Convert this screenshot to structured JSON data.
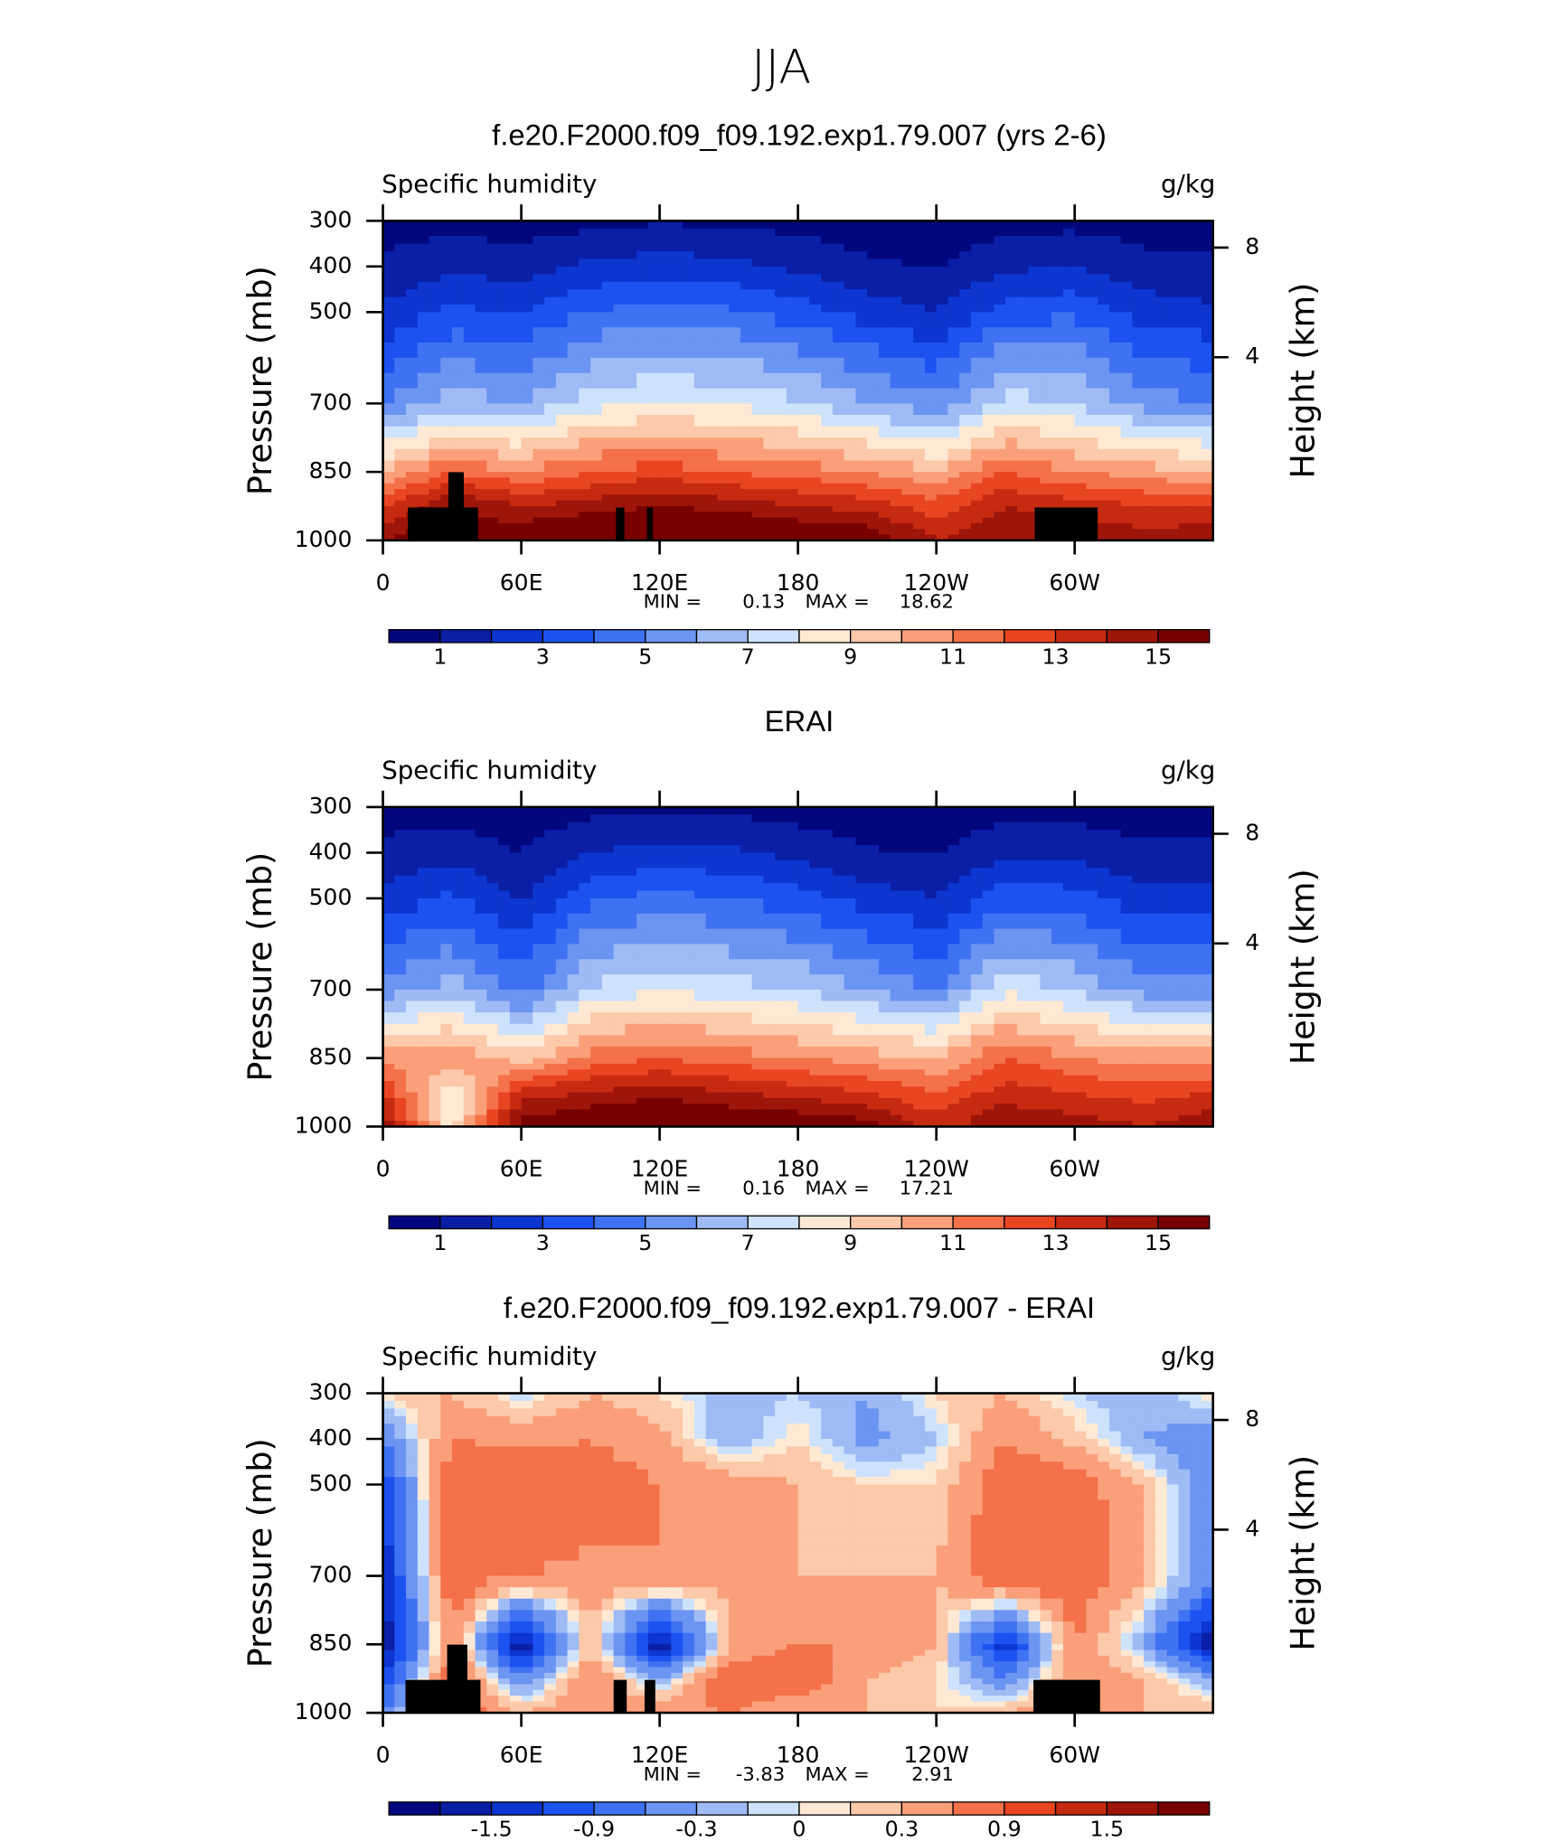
{
  "title": "JJA",
  "chart_data": [
    {
      "type": "contour",
      "title": "f.e20.F2000.f09_f09.192.exp1.79.007 (yrs 2-6)",
      "left_label": "Specific humidity",
      "right_label": "g/kg",
      "ylabel": "Pressure (mb)",
      "y2label": "Height (km)",
      "x": [
        0,
        30,
        60,
        90,
        120,
        150,
        180,
        210,
        240,
        270,
        300,
        330,
        360
      ],
      "y": [
        300,
        400,
        500,
        700,
        850,
        925,
        1000
      ],
      "z": [
        [
          0.5,
          0.6,
          0.5,
          0.7,
          0.9,
          0.8,
          0.6,
          0.4,
          0.3,
          0.6,
          0.7,
          0.5,
          0.5
        ],
        [
          1.2,
          1.8,
          1.5,
          2.2,
          2.5,
          2.3,
          1.8,
          1.2,
          0.9,
          1.8,
          2.0,
          1.3,
          1.2
        ],
        [
          2.2,
          3.2,
          3.0,
          4.0,
          4.5,
          4.2,
          3.5,
          2.6,
          2.0,
          3.5,
          3.8,
          2.6,
          2.2
        ],
        [
          5,
          6.5,
          6,
          7.5,
          8,
          7.8,
          7.2,
          6.2,
          5.2,
          7.5,
          7,
          5.5,
          5
        ],
        [
          10,
          12,
          11,
          12,
          12.5,
          12,
          11.5,
          11,
          10,
          12,
          11,
          10.5,
          10
        ],
        [
          13,
          15,
          14,
          14.5,
          15,
          14.5,
          14,
          13.5,
          12.5,
          14,
          13.5,
          13,
          13
        ],
        [
          15,
          16,
          16,
          17,
          17.5,
          17,
          16.5,
          16,
          14,
          15,
          15,
          14.5,
          15
        ]
      ],
      "xlim": [
        0,
        360
      ],
      "xticks": [
        0,
        {
          "value": 60,
          "label": "60E"
        },
        {
          "value": 120,
          "label": "120E"
        },
        180,
        {
          "value": 240,
          "label": "120W"
        },
        {
          "value": 300,
          "label": "60W"
        }
      ],
      "ylim": [
        1000,
        300
      ],
      "yticks": [
        300,
        400,
        500,
        700,
        850,
        1000
      ],
      "y2ticks": [
        4,
        8
      ],
      "min_label": "MIN =",
      "min": 0.13,
      "max_label": "MAX =",
      "max": 18.62,
      "levels": [
        1,
        2,
        3,
        4,
        5,
        6,
        7,
        8,
        9,
        10,
        11,
        12,
        13,
        14,
        15
      ],
      "colorbar_ticks": [
        1,
        3,
        5,
        7,
        9,
        11,
        13,
        15
      ],
      "colors": [
        "#03077e",
        "#0a1ea6",
        "#0c36cf",
        "#1c52ef",
        "#3f72f2",
        "#6c94f2",
        "#9fbbf6",
        "#cfe2fb",
        "#ffe9d4",
        "#fcc9aa",
        "#fb9f7b",
        "#f47149",
        "#e84521",
        "#c62a10",
        "#9e150a",
        "#780000"
      ]
    },
    {
      "type": "contour",
      "title": "ERAI",
      "left_label": "Specific humidity",
      "right_label": "g/kg",
      "ylabel": "Pressure (mb)",
      "y2label": "Height (km)",
      "x": [
        0,
        30,
        60,
        90,
        120,
        150,
        180,
        210,
        240,
        270,
        300,
        330,
        360
      ],
      "y": [
        300,
        400,
        500,
        700,
        850,
        925,
        1000
      ],
      "z": [
        [
          0.5,
          0.5,
          0.4,
          0.7,
          0.8,
          0.7,
          0.5,
          0.4,
          0.3,
          0.6,
          0.6,
          0.4,
          0.5
        ],
        [
          1.3,
          1.6,
          1.0,
          2.0,
          2.3,
          2.2,
          1.7,
          1.1,
          0.9,
          1.8,
          1.7,
          1.2,
          1.3
        ],
        [
          2.4,
          3.2,
          1.9,
          3.8,
          4.3,
          4.0,
          3.4,
          2.5,
          2.0,
          3.6,
          3.4,
          2.4,
          2.4
        ],
        [
          5.5,
          6.5,
          4.5,
          7.2,
          7.8,
          7.5,
          7.0,
          6.0,
          5.0,
          7.8,
          6.8,
          5.5,
          5.5
        ],
        [
          10.5,
          11,
          9.5,
          11.5,
          12,
          11.5,
          11,
          10.5,
          10,
          12,
          11,
          10.5,
          10.5
        ],
        [
          13,
          8,
          13.5,
          14,
          14.5,
          14,
          13.5,
          13,
          12,
          13.5,
          13,
          12.5,
          13
        ],
        [
          15,
          8.5,
          15.5,
          16.5,
          17,
          16.5,
          16,
          15.5,
          13.5,
          15,
          14.5,
          14,
          15
        ]
      ],
      "xlim": [
        0,
        360
      ],
      "xticks": [
        0,
        {
          "value": 60,
          "label": "60E"
        },
        {
          "value": 120,
          "label": "120E"
        },
        180,
        {
          "value": 240,
          "label": "120W"
        },
        {
          "value": 300,
          "label": "60W"
        }
      ],
      "ylim": [
        1000,
        300
      ],
      "yticks": [
        300,
        400,
        500,
        700,
        850,
        1000
      ],
      "y2ticks": [
        4,
        8
      ],
      "min_label": "MIN =",
      "min": 0.16,
      "max_label": "MAX =",
      "max": 17.21,
      "levels": [
        1,
        2,
        3,
        4,
        5,
        6,
        7,
        8,
        9,
        10,
        11,
        12,
        13,
        14,
        15
      ],
      "colorbar_ticks": [
        1,
        3,
        5,
        7,
        9,
        11,
        13,
        15
      ],
      "colors": [
        "#03077e",
        "#0a1ea6",
        "#0c36cf",
        "#1c52ef",
        "#3f72f2",
        "#6c94f2",
        "#9fbbf6",
        "#cfe2fb",
        "#ffe9d4",
        "#fcc9aa",
        "#fb9f7b",
        "#f47149",
        "#e84521",
        "#c62a10",
        "#9e150a",
        "#780000"
      ]
    },
    {
      "type": "contour",
      "title": "f.e20.F2000.f09_f09.192.exp1.79.007 - ERAI",
      "left_label": "Specific humidity",
      "right_label": "g/kg",
      "ylabel": "Pressure (mb)",
      "y2label": "Height (km)",
      "x": [
        0,
        30,
        60,
        90,
        120,
        150,
        180,
        210,
        240,
        270,
        300,
        330,
        360
      ],
      "y": [
        300,
        400,
        500,
        700,
        850,
        925,
        1000
      ],
      "z": [
        [
          0.1,
          0.3,
          -0.1,
          0.3,
          0.1,
          -0.2,
          -0.1,
          -0.3,
          0.1,
          0.3,
          -0.1,
          -0.2,
          0.1
        ],
        [
          -0.6,
          0.6,
          0.5,
          0.6,
          0.4,
          -0.3,
          0.1,
          -0.4,
          -0.1,
          0.6,
          0.2,
          -0.3,
          -0.5
        ],
        [
          -1.2,
          0.9,
          0.9,
          0.8,
          0.6,
          0.5,
          0.3,
          0.1,
          0.1,
          0.9,
          0.8,
          0.3,
          -0.6
        ],
        [
          -1.5,
          0.9,
          0.6,
          0.5,
          0.6,
          0.4,
          0.3,
          0.3,
          0.3,
          0.9,
          0.9,
          0.3,
          -0.5
        ],
        [
          -1.8,
          0.6,
          -1.8,
          0.3,
          -1.8,
          0.3,
          0.6,
          0.6,
          0.3,
          -1.5,
          0.6,
          -0.3,
          -1.8
        ],
        [
          -1.2,
          0.9,
          -0.6,
          0.6,
          -0.3,
          0.9,
          0.9,
          0.3,
          0.1,
          -0.6,
          0.6,
          0.3,
          -0.3
        ],
        [
          -0.6,
          0.9,
          0.3,
          0.6,
          0.6,
          0.6,
          0.3,
          0.3,
          0.1,
          0.3,
          0.6,
          0.3,
          0.3
        ]
      ],
      "xlim": [
        0,
        360
      ],
      "xticks": [
        0,
        {
          "value": 60,
          "label": "60E"
        },
        {
          "value": 120,
          "label": "120E"
        },
        180,
        {
          "value": 240,
          "label": "120W"
        },
        {
          "value": 300,
          "label": "60W"
        }
      ],
      "ylim": [
        1000,
        300
      ],
      "yticks": [
        300,
        400,
        500,
        700,
        850,
        1000
      ],
      "y2ticks": [
        4,
        8
      ],
      "min_label": "MIN =",
      "min": -3.83,
      "max_label": "MAX =",
      "max": 2.91,
      "levels": [
        -1.8,
        -1.5,
        -1.2,
        -0.9,
        -0.6,
        -0.3,
        -0.1,
        0,
        0.1,
        0.3,
        0.6,
        0.9,
        1.2,
        1.5,
        1.8
      ],
      "colorbar_ticks": [
        -1.5,
        -0.9,
        -0.3,
        0,
        0.3,
        0.9,
        1.5
      ],
      "colors": [
        "#03077e",
        "#0a1ea6",
        "#0c36cf",
        "#1c52ef",
        "#3f72f2",
        "#6c94f2",
        "#9fbbf6",
        "#cfe2fb",
        "#ffe9d4",
        "#fcc9aa",
        "#fb9f7b",
        "#f47149",
        "#e84521",
        "#c62a10",
        "#9e150a",
        "#780000"
      ]
    }
  ]
}
